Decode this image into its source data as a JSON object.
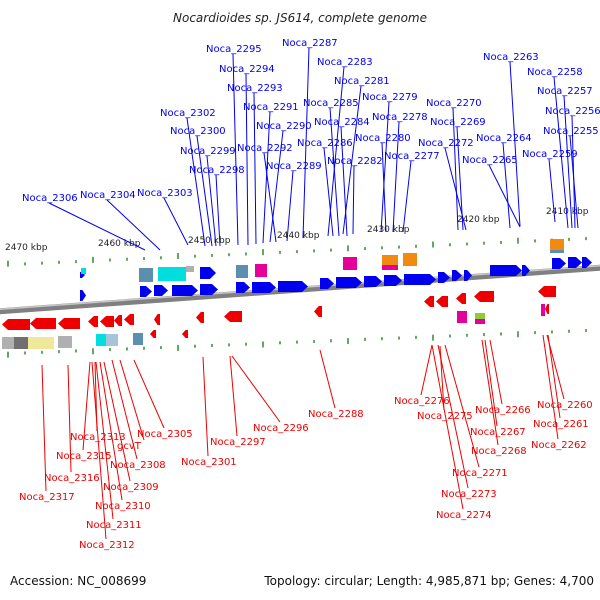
{
  "title": "Nocardioides sp. JS614, complete genome",
  "footer": {
    "accession": "Accession: NC_008699",
    "summary": "Topology: circular; Length: 4,985,871 bp; Genes: 4,700"
  },
  "colors": {
    "forward": "#0000ee",
    "reverse": "#ee0000",
    "backbone": "#808080",
    "tick": "#2e8b2e",
    "cyan": "#00dede",
    "steel": "#5b8fb0",
    "magenta": "#e6009a",
    "orange": "#f08a10",
    "gray": "#b0b0b0",
    "lightblue": "#a9c3d8",
    "yellow": "#efe79a",
    "green": "#8acc3a",
    "white": "#ffffff",
    "darkgray": "#707070"
  },
  "ruler": [
    "2470 kbp",
    "2460 kbp",
    "2450 kbp",
    "2440 kbp",
    "2430 kbp",
    "2420 kbp",
    "2410 kbp"
  ],
  "forward_labels": [
    "Noca_2295",
    "Noca_2287",
    "Noca_2294",
    "Noca_2283",
    "Noca_2293",
    "Noca_2281",
    "Noca_2263",
    "Noca_2258",
    "Noca_2257",
    "Noca_2302",
    "Noca_2291",
    "Noca_2285",
    "Noca_2279",
    "Noca_2270",
    "Noca_2256",
    "Noca_2300",
    "Noca_2290",
    "Noca_2284",
    "Noca_2278",
    "Noca_2269",
    "Noca_2255",
    "Noca_2292",
    "Noca_2286",
    "Noca_2280",
    "Noca_2272",
    "Noca_2264",
    "Noca_2299",
    "Noca_2282",
    "Noca_2277",
    "Noca_2265",
    "Noca_2259",
    "Noca_2298",
    "Noca_2289",
    "Noca_2306",
    "Noca_2304",
    "Noca_2303"
  ],
  "reverse_labels": [
    "Noca_2276",
    "Noca_2260",
    "Noca_2266",
    "Noca_2288",
    "Noca_2275",
    "Noca_2261",
    "Noca_2296",
    "Noca_2305",
    "Noca_2267",
    "Noca_2313",
    "Noca_2297",
    "Noca_2262",
    "gcvT",
    "Noca_2268",
    "Noca_2315",
    "Noca_2301",
    "Noca_2308",
    "Noca_2271",
    "Noca_2316",
    "Noca_2309",
    "Noca_2273",
    "Noca_2317",
    "Noca_2310",
    "Noca_2274",
    "Noca_2311",
    "Noca_2312"
  ]
}
